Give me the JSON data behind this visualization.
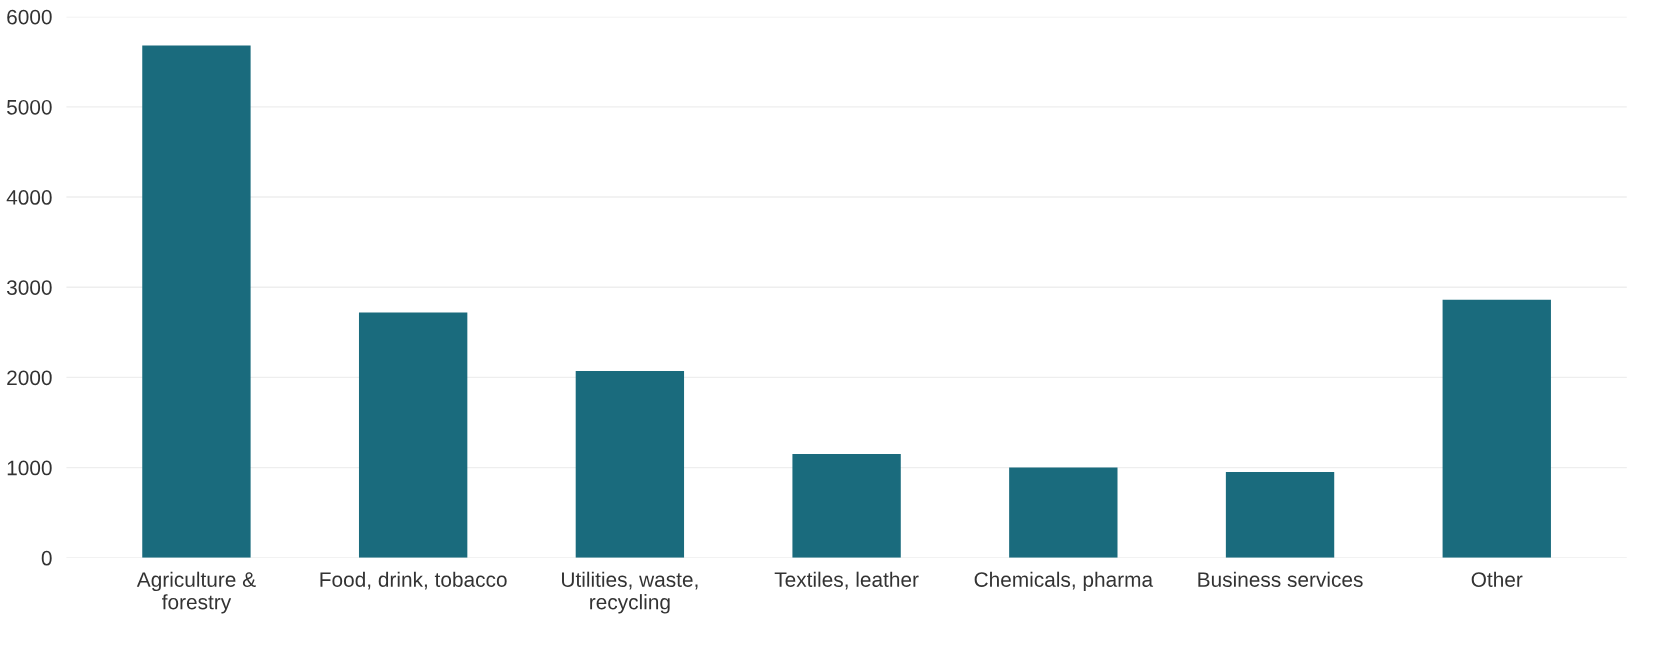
{
  "chart_data": {
    "type": "bar",
    "categories": [
      "Agriculture &\nforestry",
      "Food, drink, tobacco",
      "Utilities, waste,\nrecycling",
      "Textiles, leather",
      "Chemicals, pharma",
      "Business services",
      "Other"
    ],
    "values": [
      5680,
      2720,
      2070,
      1150,
      1000,
      950,
      2860
    ],
    "color": "#1a6b7d",
    "ylim": [
      0,
      6000
    ],
    "yticks": [
      0,
      1000,
      2000,
      3000,
      4000,
      5000,
      6000
    ],
    "grid": "y"
  }
}
